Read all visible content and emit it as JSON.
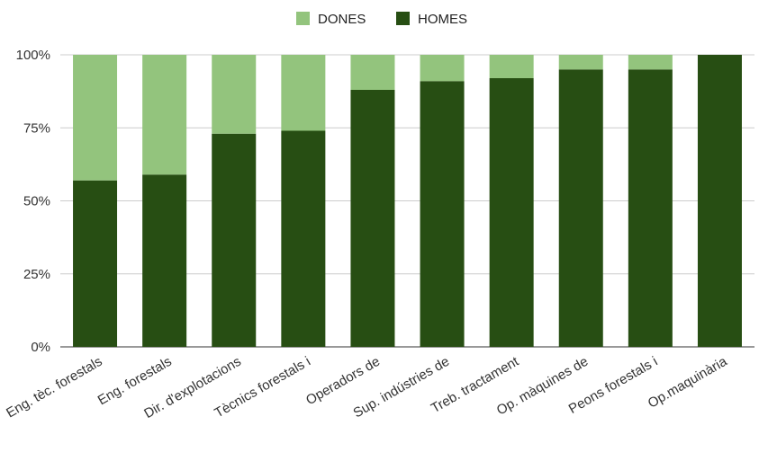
{
  "chart_data": {
    "type": "bar",
    "stacked": "percent",
    "categories": [
      "Eng. tèc. forestals",
      "Eng. forestals",
      "Dir. d'explotacions",
      "Tècnics forestals i",
      "Operadors de",
      "Sup. indústries de",
      "Treb. tractament",
      "Op. màquines de",
      "Peons forestals i",
      "Op.maquinària"
    ],
    "series": [
      {
        "name": "HOMES",
        "color": "#274e13",
        "values": [
          57,
          59,
          73,
          74,
          88,
          91,
          92,
          95,
          95,
          100
        ]
      },
      {
        "name": "DONES",
        "color": "#93c47d",
        "values": [
          43,
          41,
          27,
          26,
          12,
          9,
          8,
          5,
          5,
          0
        ]
      }
    ],
    "legend_order": [
      "DONES",
      "HOMES"
    ],
    "legend_position": "top",
    "yticks": [
      "0%",
      "25%",
      "50%",
      "75%",
      "100%"
    ],
    "ylim": [
      0,
      100
    ],
    "grid": true,
    "title": "",
    "xlabel": "",
    "ylabel": ""
  }
}
